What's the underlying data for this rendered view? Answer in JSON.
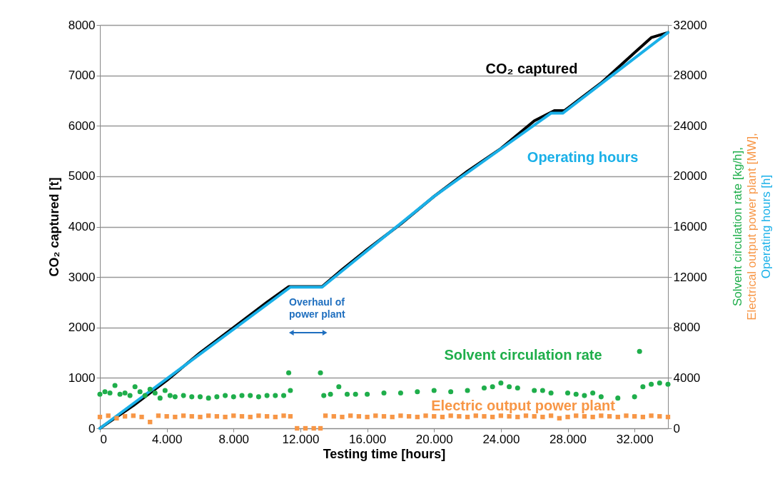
{
  "chart_data": {
    "type": "line",
    "xlabel": "Testing time [hours]",
    "ylabel": "CO₂ captured [t]",
    "y2label": "Solvent circulation rate [kg/h], Electrical output power plant [MW], Operating hours [h]",
    "xlim": [
      0,
      34000
    ],
    "xticks": [
      0,
      {
        "value": 4000,
        "label": "4.000"
      },
      {
        "value": 8000,
        "label": "8.000"
      },
      {
        "value": 12000,
        "label": "12.000"
      },
      {
        "value": 16000,
        "label": "16.000"
      },
      {
        "value": 20000,
        "label": "20.000"
      },
      {
        "value": 24000,
        "label": "24.000"
      },
      {
        "value": 28000,
        "label": "28.000"
      },
      {
        "value": 32000,
        "label": "32.000"
      }
    ],
    "ylim": [
      0,
      8000
    ],
    "yticks": [
      0,
      1000,
      2000,
      3000,
      4000,
      5000,
      6000,
      7000,
      8000
    ],
    "y2lim": [
      0,
      32000
    ],
    "y2ticks": [
      0,
      4000,
      8000,
      12000,
      16000,
      20000,
      24000,
      28000,
      32000
    ],
    "grid": "y",
    "legend": false,
    "line_style": "solid",
    "annotations": [
      "Overhaul of power plant"
    ],
    "series": [
      {
        "name": "CO₂ captured",
        "color": "#000000",
        "marker": "none",
        "x": [
          0,
          2000,
          4000,
          6000,
          8000,
          10000,
          11300,
          13300,
          14500,
          16000,
          18000,
          20000,
          22000,
          24000,
          26000,
          27200,
          27800,
          30000,
          32000,
          33000,
          34000
        ],
        "values": [
          0,
          450,
          950,
          1500,
          2000,
          2500,
          2810,
          2810,
          3150,
          3550,
          4050,
          4600,
          5100,
          5550,
          6100,
          6300,
          6300,
          6850,
          7450,
          7750,
          7850
        ]
      },
      {
        "name": "Operating hours",
        "axis": "y2",
        "color": "#1ab0e8",
        "marker": "none",
        "x": [
          0,
          11400,
          13300,
          20000,
          27000,
          27700,
          34000
        ],
        "values": [
          0,
          11200,
          11200,
          18400,
          25000,
          25000,
          31400
        ]
      },
      {
        "name": "Solvent circulation rate",
        "type": "scatter",
        "axis": "y2",
        "color": "#1fae4b",
        "marker": "circle",
        "x": [
          0,
          300,
          600,
          900,
          1200,
          1500,
          1800,
          2100,
          2400,
          2700,
          3000,
          3300,
          3600,
          3900,
          4200,
          4500,
          5000,
          5500,
          6000,
          6500,
          7000,
          7500,
          8000,
          8500,
          9000,
          9500,
          10000,
          10500,
          11000,
          11300,
          11400,
          13200,
          13400,
          13800,
          14300,
          14800,
          15300,
          16000,
          17000,
          18000,
          19000,
          20000,
          21000,
          22000,
          23000,
          23500,
          24000,
          24500,
          25000,
          26000,
          26500,
          27000,
          28000,
          28500,
          29000,
          29500,
          30000,
          31000,
          32000,
          32300,
          32500,
          33000,
          33500,
          34000
        ],
        "values": [
          2700,
          2900,
          2800,
          3400,
          2700,
          2800,
          2600,
          3300,
          2900,
          2600,
          3100,
          2800,
          2400,
          3000,
          2600,
          2500,
          2600,
          2500,
          2500,
          2400,
          2500,
          2600,
          2500,
          2600,
          2600,
          2500,
          2600,
          2600,
          2600,
          4400,
          3000,
          4400,
          2600,
          2700,
          3300,
          2700,
          2700,
          2700,
          2800,
          2800,
          2900,
          3000,
          2900,
          3000,
          3200,
          3300,
          3600,
          3300,
          3200,
          3000,
          3000,
          2800,
          2800,
          2700,
          2600,
          2800,
          2500,
          2400,
          2500,
          6100,
          3300,
          3500,
          3600,
          3500
        ]
      },
      {
        "name": "Electric output power plant",
        "type": "scatter",
        "axis": "y2",
        "color": "#f79646",
        "marker": "square",
        "x": [
          0,
          500,
          1000,
          1500,
          2000,
          2500,
          3000,
          3500,
          4000,
          4500,
          5000,
          5500,
          6000,
          6500,
          7000,
          7500,
          8000,
          8500,
          9000,
          9500,
          10000,
          10500,
          11000,
          11400,
          11800,
          12300,
          12800,
          13200,
          13500,
          14000,
          14500,
          15000,
          15500,
          16000,
          16500,
          17000,
          17500,
          18000,
          18500,
          19000,
          19500,
          20000,
          20500,
          21000,
          21500,
          22000,
          22500,
          23000,
          23500,
          24000,
          24500,
          25000,
          25500,
          26000,
          26500,
          27000,
          27500,
          28000,
          28500,
          29000,
          29500,
          30000,
          30500,
          31000,
          31500,
          32000,
          32500,
          33000,
          33500,
          34000
        ],
        "values": [
          900,
          1000,
          800,
          950,
          1000,
          900,
          500,
          1000,
          950,
          900,
          1000,
          950,
          900,
          1000,
          950,
          900,
          1000,
          950,
          900,
          1000,
          950,
          900,
          1000,
          950,
          0,
          0,
          0,
          0,
          1000,
          950,
          900,
          1000,
          950,
          900,
          1000,
          950,
          900,
          1000,
          950,
          900,
          1000,
          950,
          900,
          1000,
          950,
          900,
          1000,
          950,
          900,
          1000,
          950,
          900,
          1000,
          950,
          900,
          1000,
          800,
          900,
          1000,
          950,
          900,
          1000,
          950,
          900,
          1000,
          950,
          900,
          1000,
          950,
          900
        ]
      }
    ]
  }
}
